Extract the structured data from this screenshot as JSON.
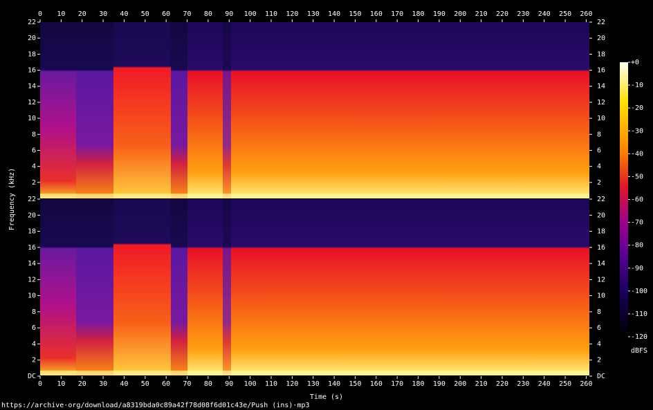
{
  "chart_data": {
    "type": "spectrogram",
    "xlabel": "Time (s)",
    "ylabel": "Frequency (kHz)",
    "xlim": [
      0,
      261.5
    ],
    "xticks": [
      0,
      10,
      20,
      30,
      40,
      50,
      60,
      70,
      80,
      90,
      100,
      110,
      120,
      130,
      140,
      150,
      160,
      170,
      180,
      190,
      200,
      210,
      220,
      230,
      240,
      250,
      260
    ],
    "channels": [
      {
        "ylim": [
          0,
          22
        ],
        "yticks": [
          2,
          4,
          6,
          8,
          10,
          12,
          14,
          16,
          18,
          20,
          22
        ]
      },
      {
        "ylim": [
          0,
          22
        ],
        "yticks": [
          {
            "value": 0,
            "label": "DC"
          },
          2,
          4,
          6,
          8,
          10,
          12,
          14,
          16,
          18,
          20,
          22
        ]
      }
    ],
    "colorbar": {
      "label": "dBFS",
      "ylim": [
        -120,
        0
      ],
      "yticks": [
        {
          "value": 0,
          "label": "+0"
        },
        -10,
        -20,
        -30,
        -40,
        -50,
        -60,
        -70,
        -80,
        -90,
        -100,
        -110,
        -120
      ]
    }
  },
  "source": "https://archive·org/download/a8319bda0c89a42f78d08f6d01c43e/Push (ins)·mp3"
}
